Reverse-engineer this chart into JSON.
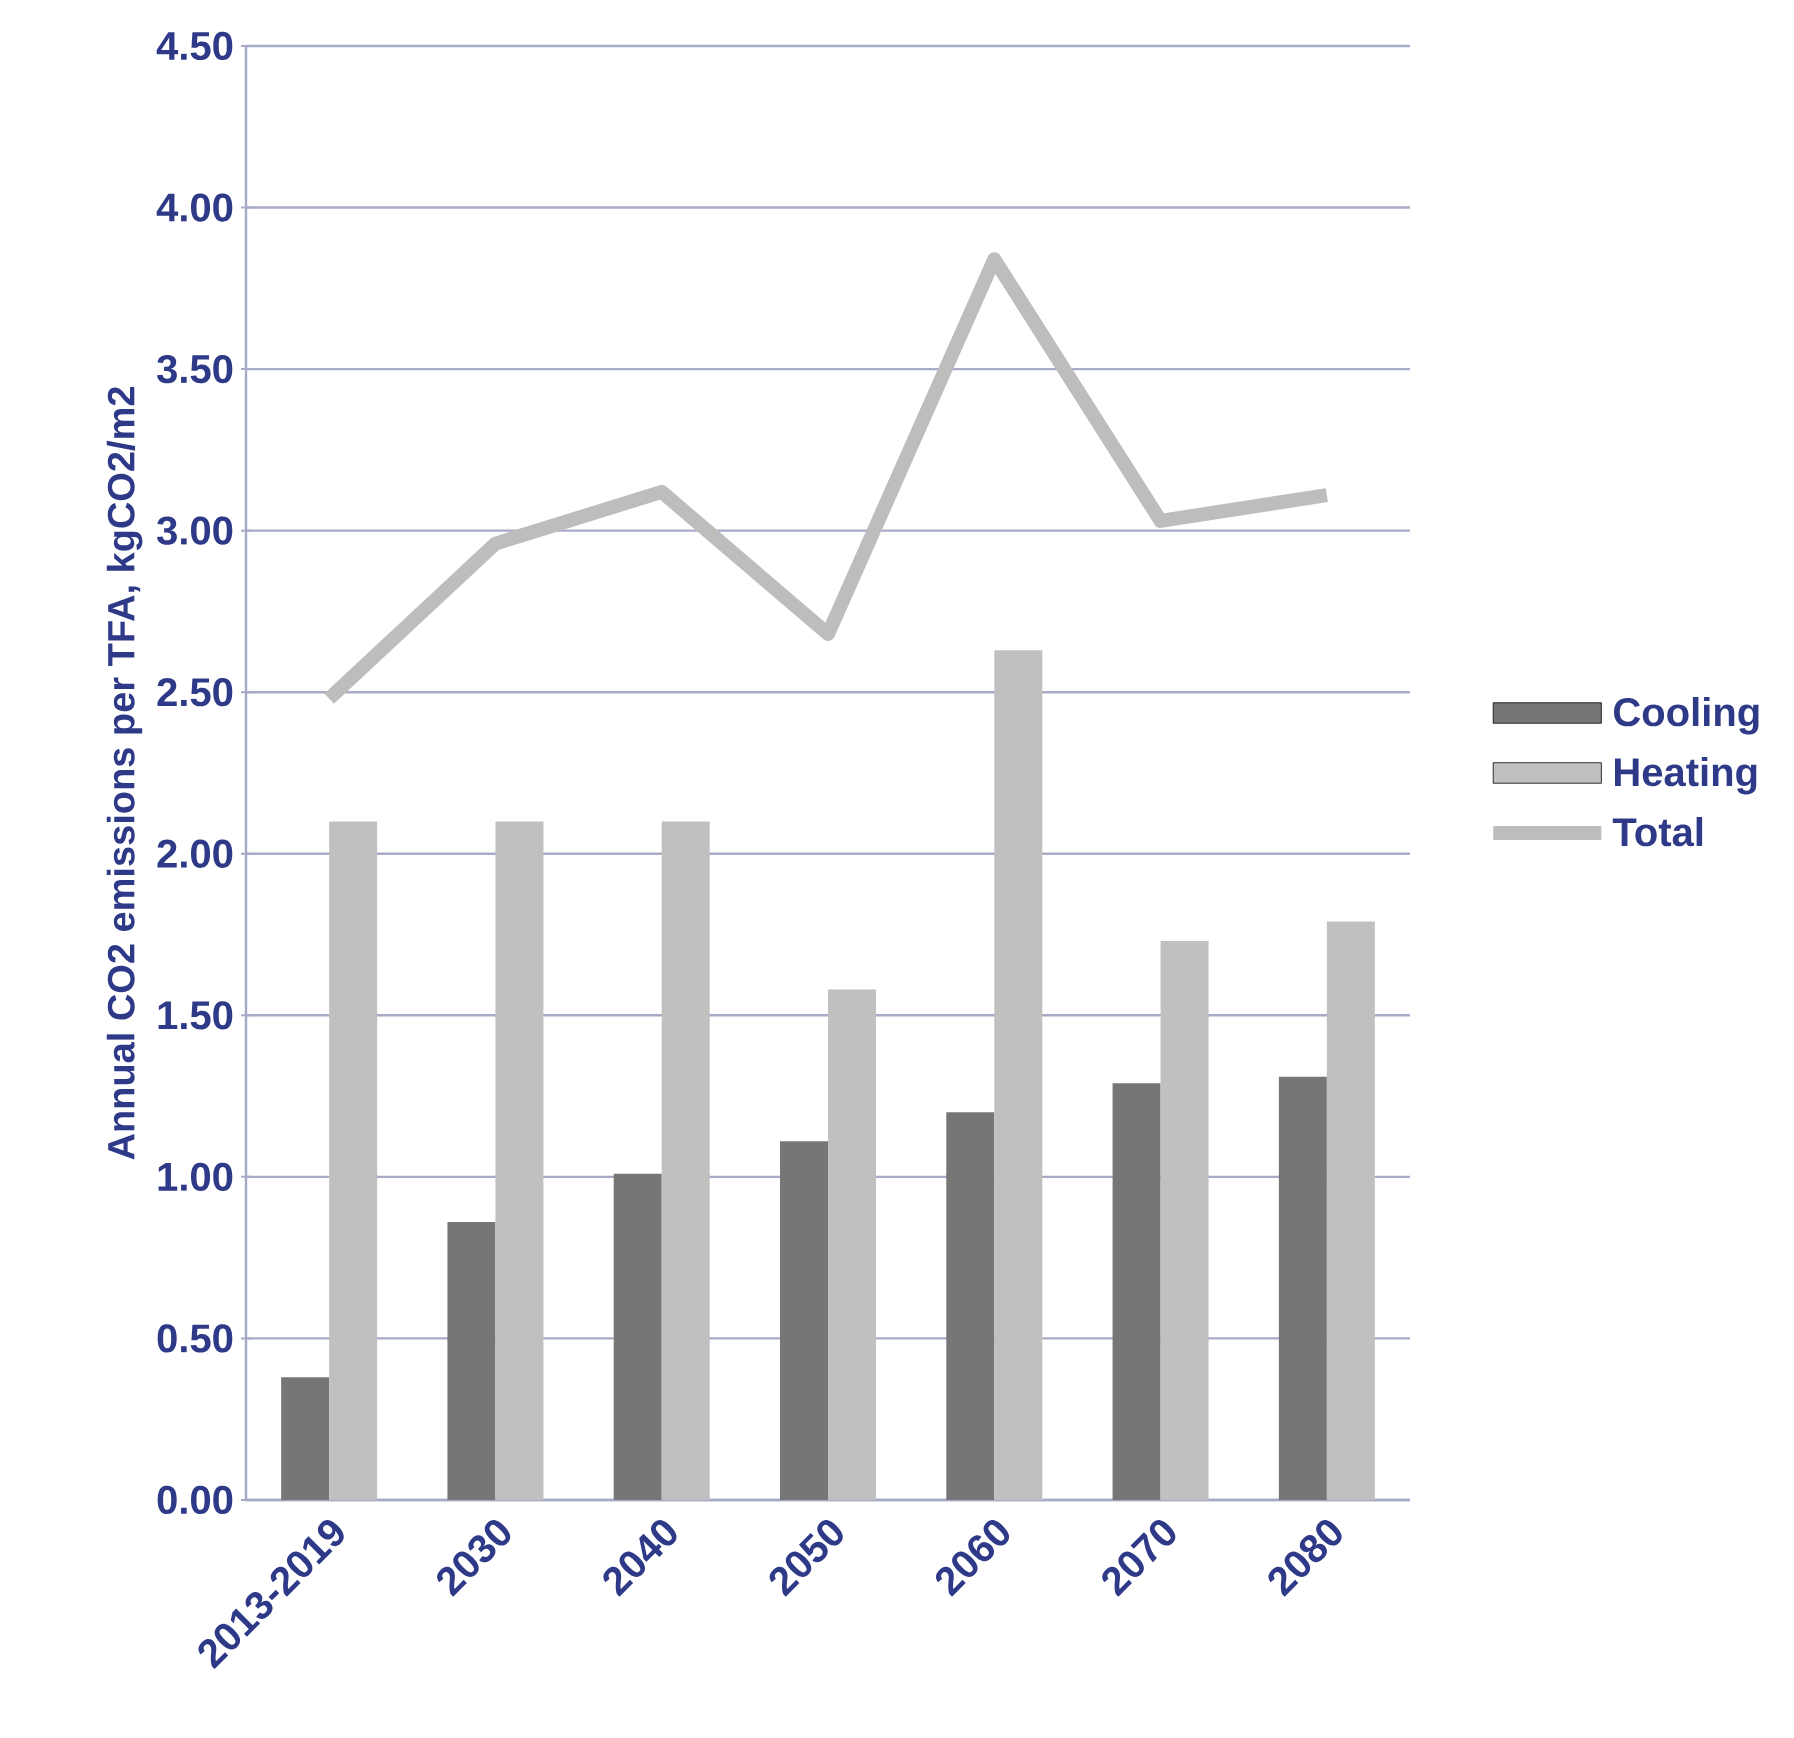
{
  "chart_data": {
    "type": "bar",
    "ylabel": "Annual CO2 emissions per TFA, kgCO2/m2",
    "categories": [
      "2013-2019",
      "2030",
      "2040",
      "2050",
      "2060",
      "2070",
      "2080"
    ],
    "series": [
      {
        "name": "Cooling",
        "color": "#767676",
        "values": [
          0.38,
          0.86,
          1.01,
          1.11,
          1.2,
          1.29,
          1.31
        ]
      },
      {
        "name": "Heating",
        "color": "#c0c0c0",
        "values": [
          2.1,
          2.1,
          2.1,
          1.58,
          2.63,
          1.73,
          1.79
        ]
      },
      {
        "name": "Total",
        "type": "line",
        "color": "#bdbdbd",
        "values": [
          2.48,
          2.96,
          3.12,
          2.68,
          3.84,
          3.03,
          3.11
        ]
      }
    ],
    "ylim": [
      0,
      4.5
    ],
    "yticks": [
      {
        "value": 0,
        "label": "0.00"
      },
      {
        "value": 0.5,
        "label": "0.50"
      },
      {
        "value": 1,
        "label": "1.00"
      },
      {
        "value": 1.5,
        "label": "1.50"
      },
      {
        "value": 2,
        "label": "2.00"
      },
      {
        "value": 2.5,
        "label": "2.50"
      },
      {
        "value": 3,
        "label": "3.00"
      },
      {
        "value": 3.5,
        "label": "3.50"
      },
      {
        "value": 4,
        "label": "4.00"
      },
      {
        "value": 4.5,
        "label": "4.50"
      }
    ],
    "grid": "y",
    "legend": "right"
  }
}
